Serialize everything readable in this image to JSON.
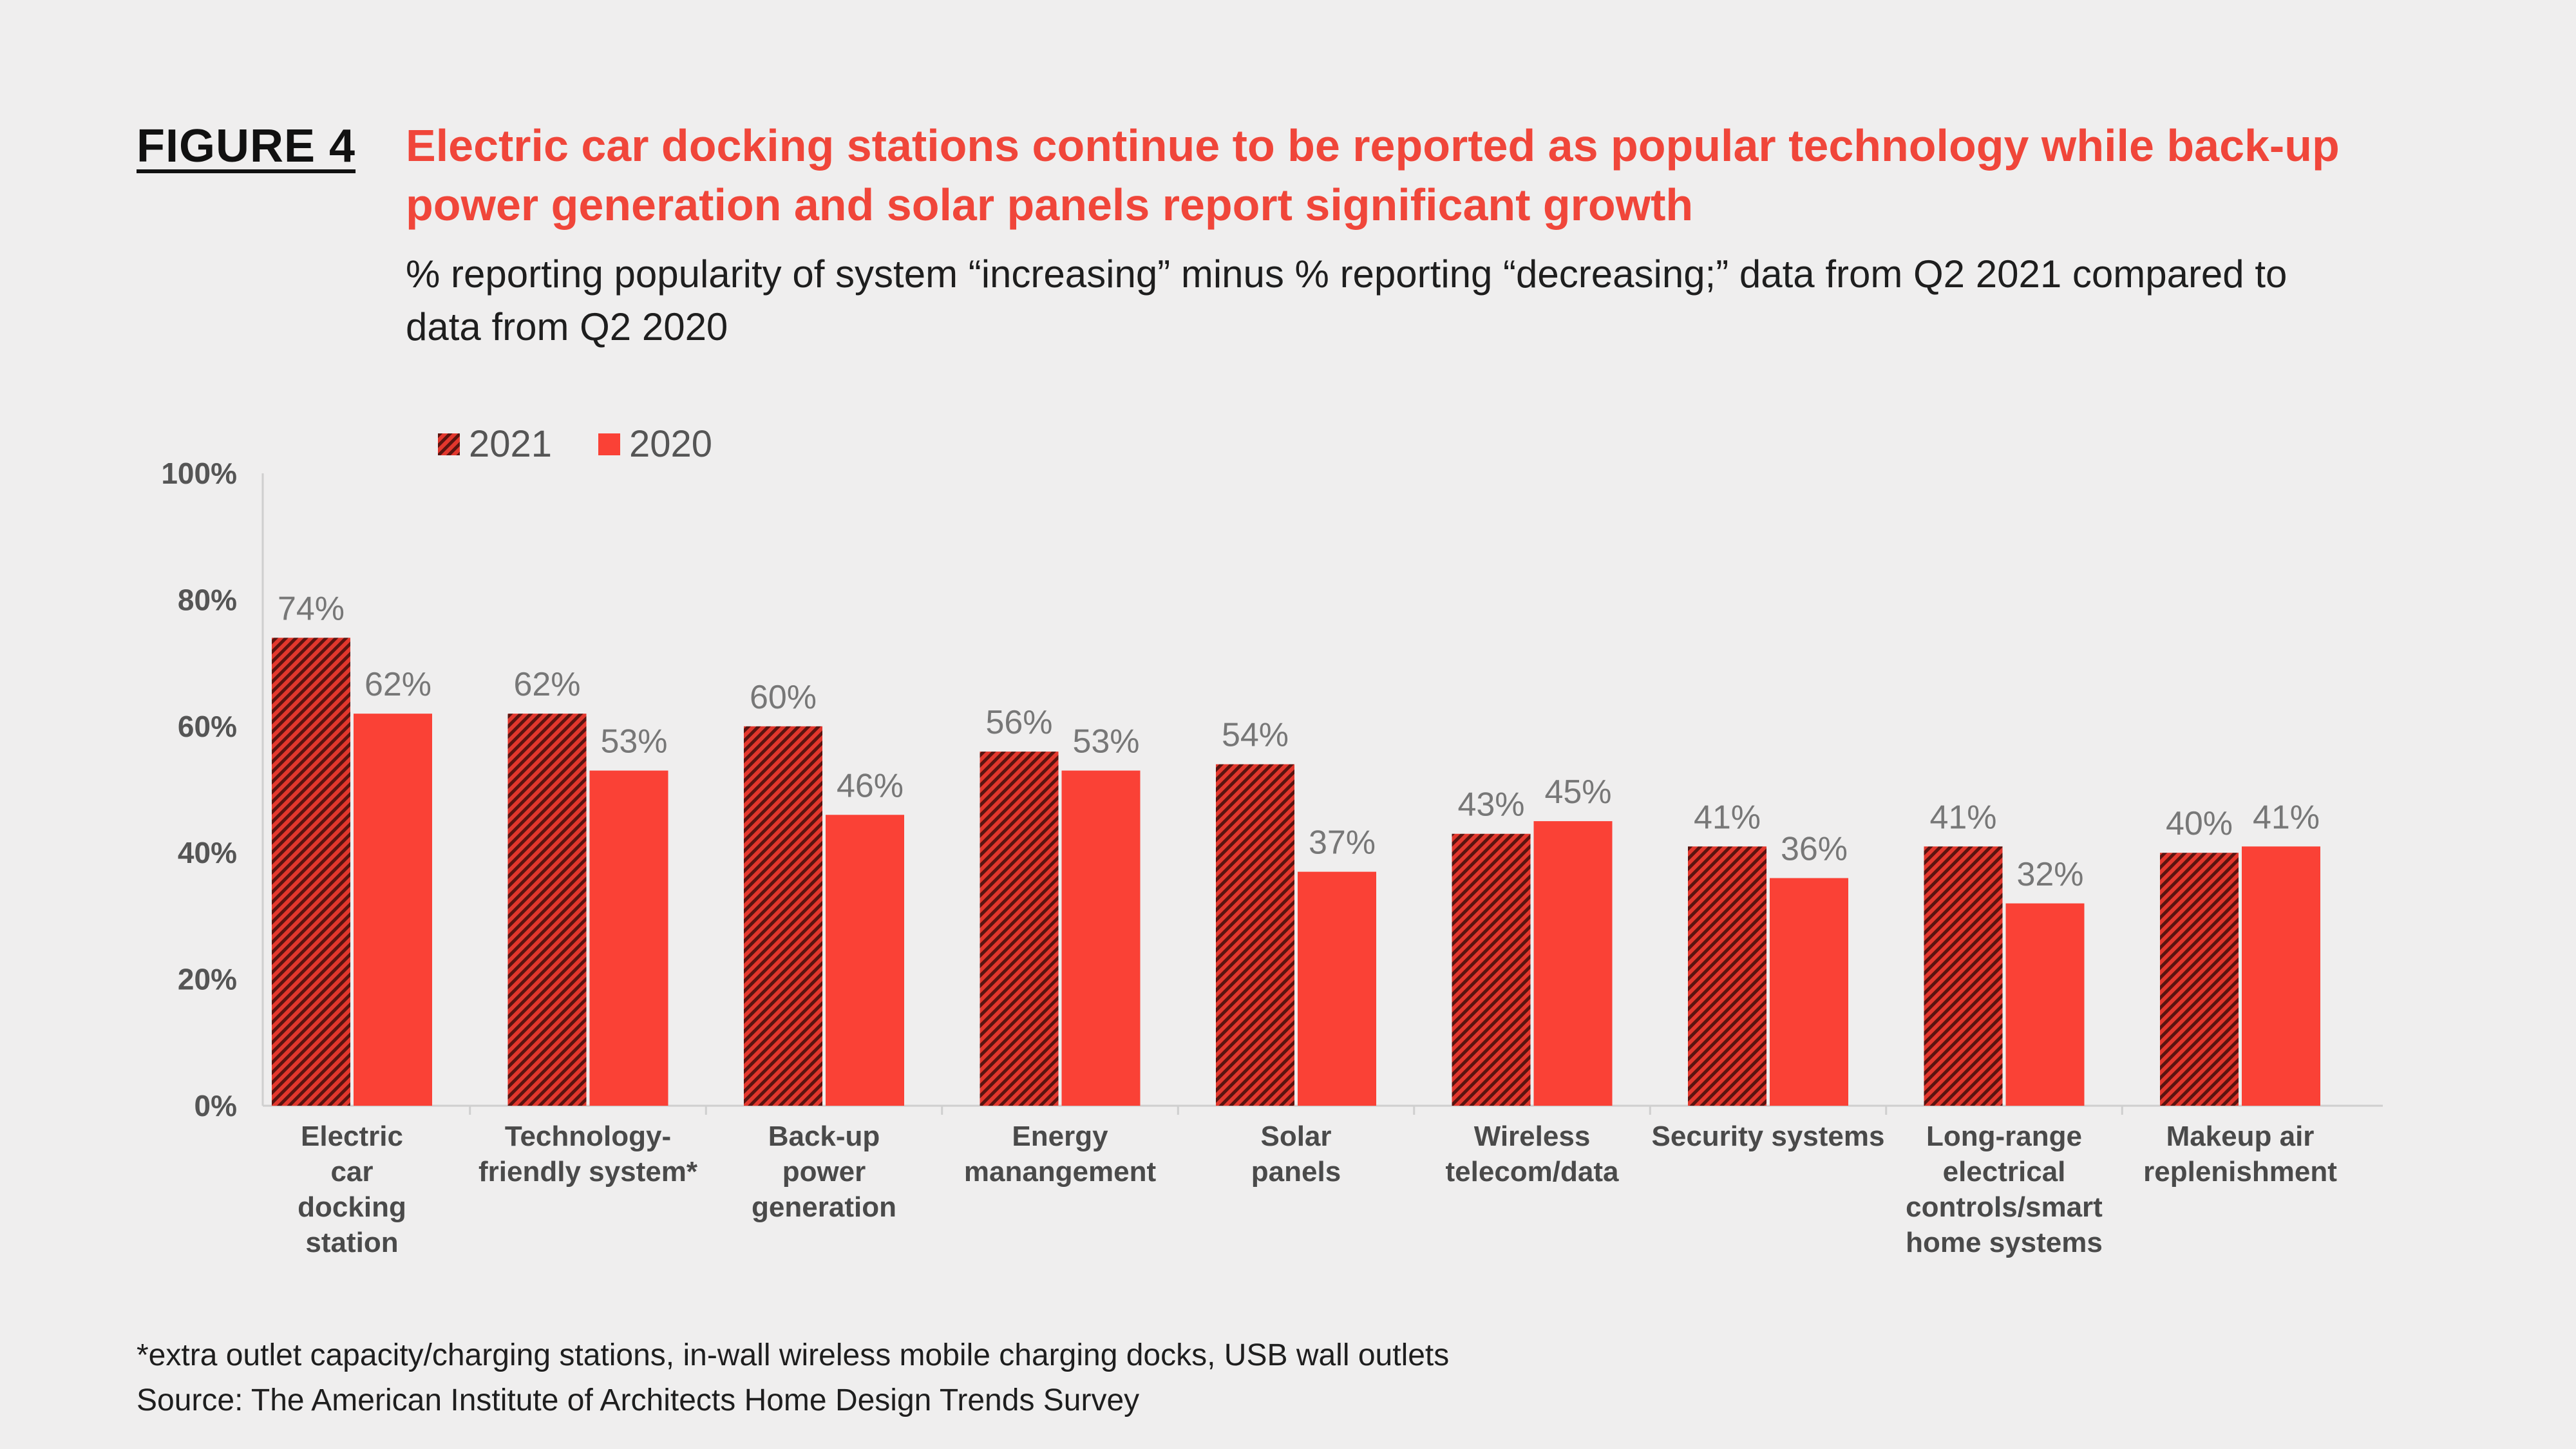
{
  "figure_label": "FIGURE 4",
  "title": "Electric car docking stations continue to be reported as popular technology while back-up power generation and solar panels report significant growth",
  "subtitle": "% reporting popularity of system “increasing” minus % reporting “decreasing;” data from Q2 2021 compared to data from Q2 2020",
  "footnote": "*extra outlet capacity/charging stations, in-wall wireless mobile charging docks, USB wall outlets",
  "source": "Source: The American Institute of Architects Home Design Trends Survey",
  "colors": {
    "series_2021": "#e2372d",
    "series_2021_hatch": "#5a1410",
    "series_2020": "#fa4136",
    "title": "#f0463a"
  },
  "chart_data": {
    "type": "bar",
    "title": "Electric car docking stations continue to be reported as popular technology while back-up power generation and solar panels report significant growth",
    "xlabel": "",
    "ylabel": "",
    "ylim": [
      0,
      100
    ],
    "yticks": [
      "0%",
      "20%",
      "40%",
      "60%",
      "80%",
      "100%"
    ],
    "ytick_values": [
      0,
      20,
      40,
      60,
      80,
      100
    ],
    "grid": false,
    "legend_position": "top-left",
    "categories": [
      [
        "Electric",
        "car",
        "docking",
        "station"
      ],
      [
        "Technology-",
        "friendly system*"
      ],
      [
        "Back-up",
        "power",
        "generation"
      ],
      [
        "Energy",
        "manangement"
      ],
      [
        "Solar",
        "panels"
      ],
      [
        "Wireless",
        "telecom/data"
      ],
      [
        "Security systems"
      ],
      [
        "Long-range",
        "electrical",
        "controls/smart",
        "home systems"
      ],
      [
        "Makeup air",
        "replenishment"
      ]
    ],
    "series": [
      {
        "name": "2021",
        "values": [
          74,
          62,
          60,
          56,
          54,
          43,
          41,
          41,
          40
        ],
        "labels": [
          "74%",
          "62%",
          "60%",
          "56%",
          "54%",
          "43%",
          "41%",
          "41%",
          "40%"
        ]
      },
      {
        "name": "2020",
        "values": [
          62,
          53,
          46,
          53,
          37,
          45,
          36,
          32,
          41
        ],
        "labels": [
          "62%",
          "53%",
          "46%",
          "53%",
          "37%",
          "45%",
          "36%",
          "32%",
          "41%"
        ]
      }
    ]
  }
}
